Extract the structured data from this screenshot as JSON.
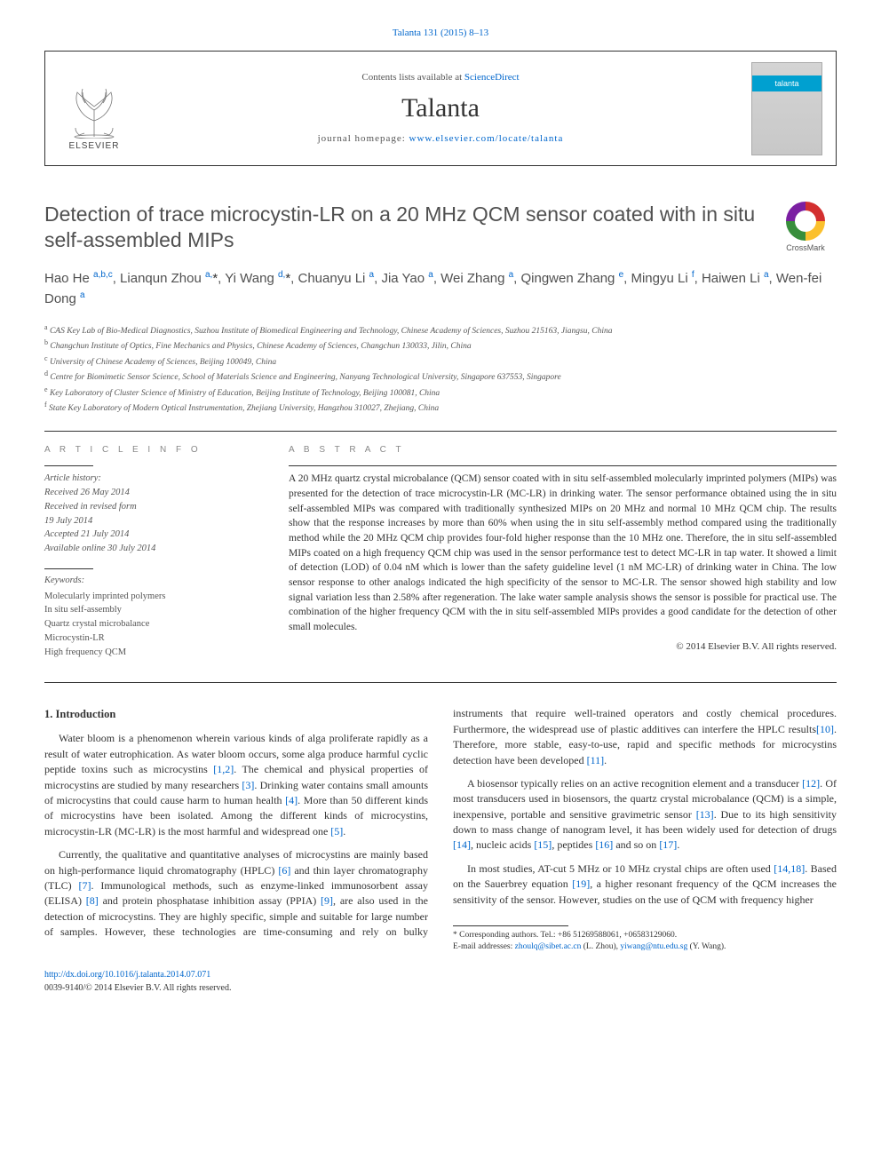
{
  "journal": {
    "citation_line": "Talanta 131 (2015) 8–13",
    "contents_prefix": "Contents lists available at ",
    "contents_link": "ScienceDirect",
    "name": "Talanta",
    "homepage_prefix": "journal homepage: ",
    "homepage_url": "www.elsevier.com/locate/talanta",
    "publisher_word": "ELSEVIER",
    "cover_banner": "talanta"
  },
  "crossmark": {
    "label": "CrossMark"
  },
  "article": {
    "title": "Detection of trace microcystin-LR on a 20 MHz QCM sensor coated with in situ self-assembled MIPs",
    "authors_html": "Hao He <sup>a,b,c</sup>, Lianqun Zhou <sup>a,</sup><span class='star'>*</span>, Yi Wang <sup>d,</sup><span class='star'>*</span>, Chuanyu Li <sup>a</sup>, Jia Yao <sup>a</sup>, Wei Zhang <sup>a</sup>, Qingwen Zhang <sup>e</sup>, Mingyu Li <sup>f</sup>, Haiwen Li <sup>a</sup>, Wen-fei Dong <sup>a</sup>",
    "affiliations": [
      {
        "sup": "a",
        "text": "CAS Key Lab of Bio-Medical Diagnostics, Suzhou Institute of Biomedical Engineering and Technology, Chinese Academy of Sciences, Suzhou 215163, Jiangsu, China"
      },
      {
        "sup": "b",
        "text": "Changchun Institute of Optics, Fine Mechanics and Physics, Chinese Academy of Sciences, Changchun 130033, Jilin, China"
      },
      {
        "sup": "c",
        "text": "University of Chinese Academy of Sciences, Beijing 100049, China"
      },
      {
        "sup": "d",
        "text": "Centre for Biomimetic Sensor Science, School of Materials Science and Engineering, Nanyang Technological University, Singapore 637553, Singapore"
      },
      {
        "sup": "e",
        "text": "Key Laboratory of Cluster Science of Ministry of Education, Beijing Institute of Technology, Beijing 100081, China"
      },
      {
        "sup": "f",
        "text": "State Key Laboratory of Modern Optical Instrumentation, Zhejiang University, Hangzhou 310027, Zhejiang, China"
      }
    ]
  },
  "info": {
    "heading": "A R T I C L E  I N F O",
    "history_head": "Article history:",
    "history": [
      "Received 26 May 2014",
      "Received in revised form",
      "19 July 2014",
      "Accepted 21 July 2014",
      "Available online 30 July 2014"
    ],
    "keywords_head": "Keywords:",
    "keywords": [
      "Molecularly imprinted polymers",
      "In situ self-assembly",
      "Quartz crystal microbalance",
      "Microcystin-LR",
      "High frequency QCM"
    ]
  },
  "abstract": {
    "heading": "A B S T R A C T",
    "text": "A 20 MHz quartz crystal microbalance (QCM) sensor coated with in situ self-assembled molecularly imprinted polymers (MIPs) was presented for the detection of trace microcystin-LR (MC-LR) in drinking water. The sensor performance obtained using the in situ self-assembled MIPs was compared with traditionally synthesized MIPs on 20 MHz and normal 10 MHz QCM chip. The results show that the response increases by more than 60% when using the in situ self-assembly method compared using the traditionally method while the 20 MHz QCM chip provides four-fold higher response than the 10 MHz one. Therefore, the in situ self-assembled MIPs coated on a high frequency QCM chip was used in the sensor performance test to detect MC-LR in tap water. It showed a limit of detection (LOD) of 0.04 nM which is lower than the safety guideline level (1 nM MC-LR) of drinking water in China. The low sensor response to other analogs indicated the high specificity of the sensor to MC-LR. The sensor showed high stability and low signal variation less than 2.58% after regeneration. The lake water sample analysis shows the sensor is possible for practical use. The combination of the higher frequency QCM with the in situ self-assembled MIPs provides a good candidate for the detection of other small molecules.",
    "copyright": "© 2014 Elsevier B.V. All rights reserved."
  },
  "body": {
    "section_heading": "1.  Introduction",
    "p1_a": "Water bloom is a phenomenon wherein various kinds of alga proliferate rapidly as a result of water eutrophication. As water bloom occurs, some alga produce harmful cyclic peptide toxins such as microcystins ",
    "p1_r1": "[1,2]",
    "p1_b": ". The chemical and physical properties of microcystins are studied by many researchers ",
    "p1_r2": "[3]",
    "p1_c": ". Drinking water contains small amounts of microcystins that could cause harm to human health ",
    "p1_r3": "[4]",
    "p1_d": ". More than 50 different kinds of microcystins have been isolated. Among the different kinds of microcystins, microcystin-LR (MC-LR) is the most harmful and widespread one ",
    "p1_r4": "[5]",
    "p1_e": ".",
    "p2_a": "Currently, the qualitative and quantitative analyses of microcystins are mainly based on high-performance liquid chromatography (HPLC) ",
    "p2_r1": "[6]",
    "p2_b": " and thin layer chromatography (TLC) ",
    "p2_r2": "[7]",
    "p2_c": ". Immunological methods, such as enzyme-linked immunosorbent ",
    "p2_d": "assay (ELISA) ",
    "p2_r3": "[8]",
    "p2_e": " and protein phosphatase inhibition assay (PPIA) ",
    "p2_r4": "[9]",
    "p2_f": ", are also used in the detection of microcystins. They are highly specific, simple and suitable for large number of samples. However, these technologies are time-consuming and rely on bulky instruments that require well-trained operators and costly chemical procedures. Furthermore, the widespread use of plastic additives can interfere the HPLC results",
    "p2_r5": "[10]",
    "p2_g": ". Therefore, more stable, easy-to-use, rapid and specific methods for microcystins detection have been developed ",
    "p2_r6": "[11]",
    "p2_h": ".",
    "p3_a": "A biosensor typically relies on an active recognition element and a transducer ",
    "p3_r1": "[12]",
    "p3_b": ". Of most transducers used in biosensors, the quartz crystal microbalance (QCM) is a simple, inexpensive, portable and sensitive gravimetric sensor ",
    "p3_r2": "[13]",
    "p3_c": ". Due to its high sensitivity down to mass change of nanogram level, it has been widely used for detection of drugs ",
    "p3_r3": "[14]",
    "p3_d": ", nucleic acids ",
    "p3_r4": "[15]",
    "p3_e": ", peptides ",
    "p3_r5": "[16]",
    "p3_f": " and so on ",
    "p3_r6": "[17]",
    "p3_g": ".",
    "p4_a": "In most studies, AT-cut 5 MHz or 10 MHz crystal chips are often used ",
    "p4_r1": "[14,18]",
    "p4_b": ". Based on the Sauerbrey equation ",
    "p4_r2": "[19]",
    "p4_c": ", a higher resonant frequency of the QCM increases the sensitivity of the sensor. However, studies on the use of QCM with frequency higher"
  },
  "footnotes": {
    "corresponding": "* Corresponding authors. Tel.: +86 51269588061, +06583129060.",
    "email_label": "E-mail addresses: ",
    "email1": "zhoulq@sibet.ac.cn",
    "email1_who": " (L. Zhou), ",
    "email2": "yiwang@ntu.edu.sg",
    "email2_who": " (Y. Wang)."
  },
  "bottom": {
    "doi": "http://dx.doi.org/10.1016/j.talanta.2014.07.071",
    "issn_line": "0039-9140/© 2014 Elsevier B.V. All rights reserved."
  },
  "colors": {
    "link": "#0066cc",
    "text": "#333333",
    "muted": "#555555",
    "heading_gray": "#888888",
    "cover_blue": "#00a0d0"
  }
}
